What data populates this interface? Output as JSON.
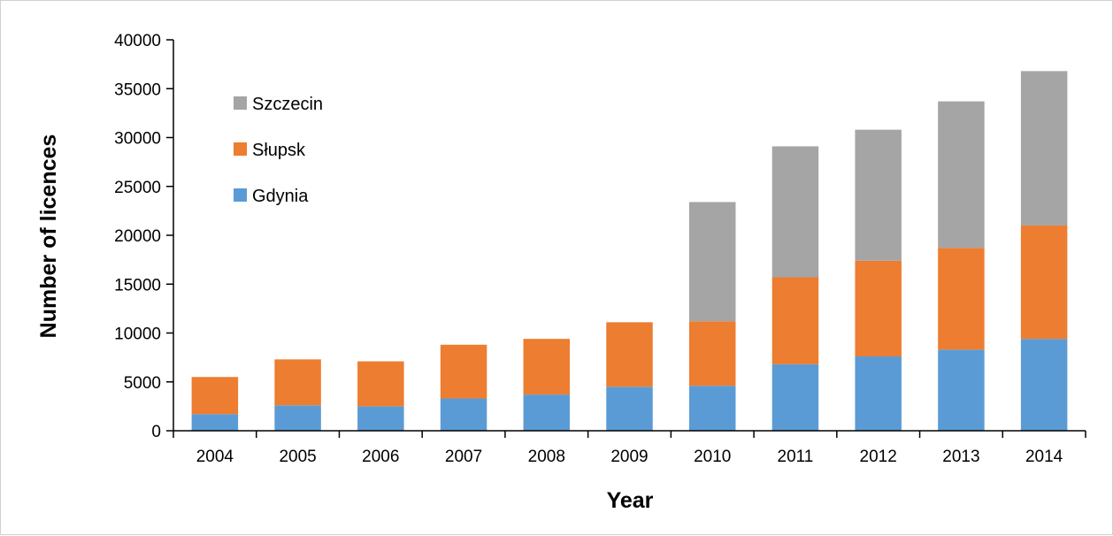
{
  "chart_data": {
    "type": "bar",
    "stacked": true,
    "title": "",
    "xlabel": "Year",
    "ylabel": "Number of licences",
    "ylim": [
      0,
      40000
    ],
    "yticks": [
      0,
      5000,
      10000,
      15000,
      20000,
      25000,
      30000,
      35000,
      40000
    ],
    "grid": false,
    "legend_position": "top-left",
    "categories": [
      "2004",
      "2005",
      "2006",
      "2007",
      "2008",
      "2009",
      "2010",
      "2011",
      "2012",
      "2013",
      "2014"
    ],
    "series": [
      {
        "name": "Gdynia",
        "color": "#5B9BD5",
        "values": [
          1700,
          2600,
          2500,
          3300,
          3700,
          4500,
          4600,
          6800,
          7600,
          8300,
          9400
        ]
      },
      {
        "name": "Słupsk",
        "color": "#ED7D31",
        "values": [
          3800,
          4700,
          4600,
          5500,
          5700,
          6600,
          6600,
          8900,
          9800,
          10400,
          11600
        ]
      },
      {
        "name": "Szczecin",
        "color": "#A5A5A5",
        "values": [
          0,
          0,
          0,
          0,
          0,
          0,
          12200,
          13400,
          13400,
          15000,
          15800
        ]
      }
    ]
  }
}
